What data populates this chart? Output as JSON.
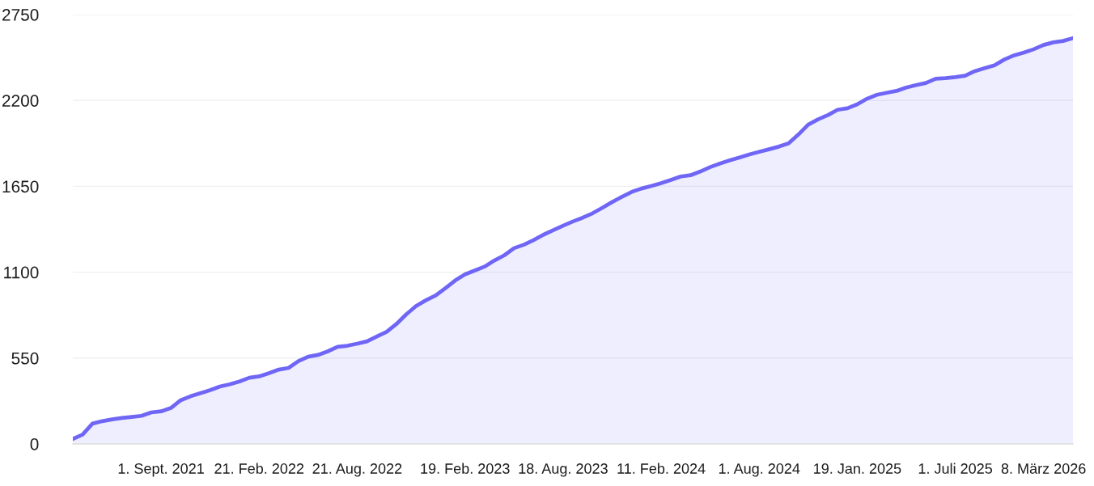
{
  "chart_data": {
    "type": "area",
    "categories": [
      null,
      null,
      null,
      null,
      null,
      null,
      null,
      null,
      null,
      "1. Sept. 2021",
      null,
      null,
      null,
      null,
      null,
      null,
      null,
      null,
      null,
      "21. Feb. 2022",
      null,
      null,
      null,
      null,
      null,
      null,
      null,
      null,
      null,
      "21. Aug. 2022",
      null,
      null,
      null,
      null,
      null,
      null,
      null,
      null,
      null,
      null,
      "19. Feb. 2023",
      null,
      null,
      null,
      null,
      null,
      null,
      null,
      null,
      null,
      "18. Aug. 2023",
      null,
      null,
      null,
      null,
      null,
      null,
      null,
      null,
      null,
      "11. Feb. 2024",
      null,
      null,
      null,
      null,
      null,
      null,
      null,
      null,
      null,
      "1. Aug. 2024",
      null,
      null,
      null,
      null,
      null,
      null,
      null,
      null,
      null,
      "19. Jan. 2025",
      null,
      null,
      null,
      null,
      null,
      null,
      null,
      null,
      null,
      "1. Juli 2025",
      null,
      null,
      null,
      null,
      null,
      null,
      null,
      null,
      "8. März 2026",
      null,
      null,
      null
    ],
    "series": [
      {
        "color": "#6f66f6",
        "values": [
          32,
          60,
          130,
          146,
          157,
          166,
          173,
          180,
          202,
          209,
          230,
          280,
          305,
          325,
          344,
          368,
          382,
          400,
          424,
          433,
          453,
          476,
          487,
          530,
          559,
          570,
          593,
          622,
          629,
          642,
          657,
          688,
          718,
          768,
          830,
          883,
          920,
          951,
          998,
          1047,
          1086,
          1111,
          1136,
          1175,
          1208,
          1254,
          1276,
          1306,
          1340,
          1369,
          1398,
          1425,
          1449,
          1477,
          1512,
          1549,
          1583,
          1614,
          1636,
          1652,
          1670,
          1691,
          1713,
          1721,
          1745,
          1773,
          1796,
          1816,
          1835,
          1854,
          1871,
          1887,
          1904,
          1925,
          1982,
          2045,
          2079,
          2106,
          2140,
          2150,
          2175,
          2211,
          2236,
          2249,
          2261,
          2283,
          2298,
          2312,
          2339,
          2343,
          2349,
          2358,
          2388,
          2407,
          2425,
          2462,
          2489,
          2507,
          2528,
          2555,
          2572,
          2581,
          2599
        ]
      }
    ],
    "ylim": [
      0,
      2750
    ],
    "yticks": [
      0,
      550,
      1100,
      1650,
      2200,
      2750
    ],
    "grid": "y",
    "line_style": "solid"
  }
}
